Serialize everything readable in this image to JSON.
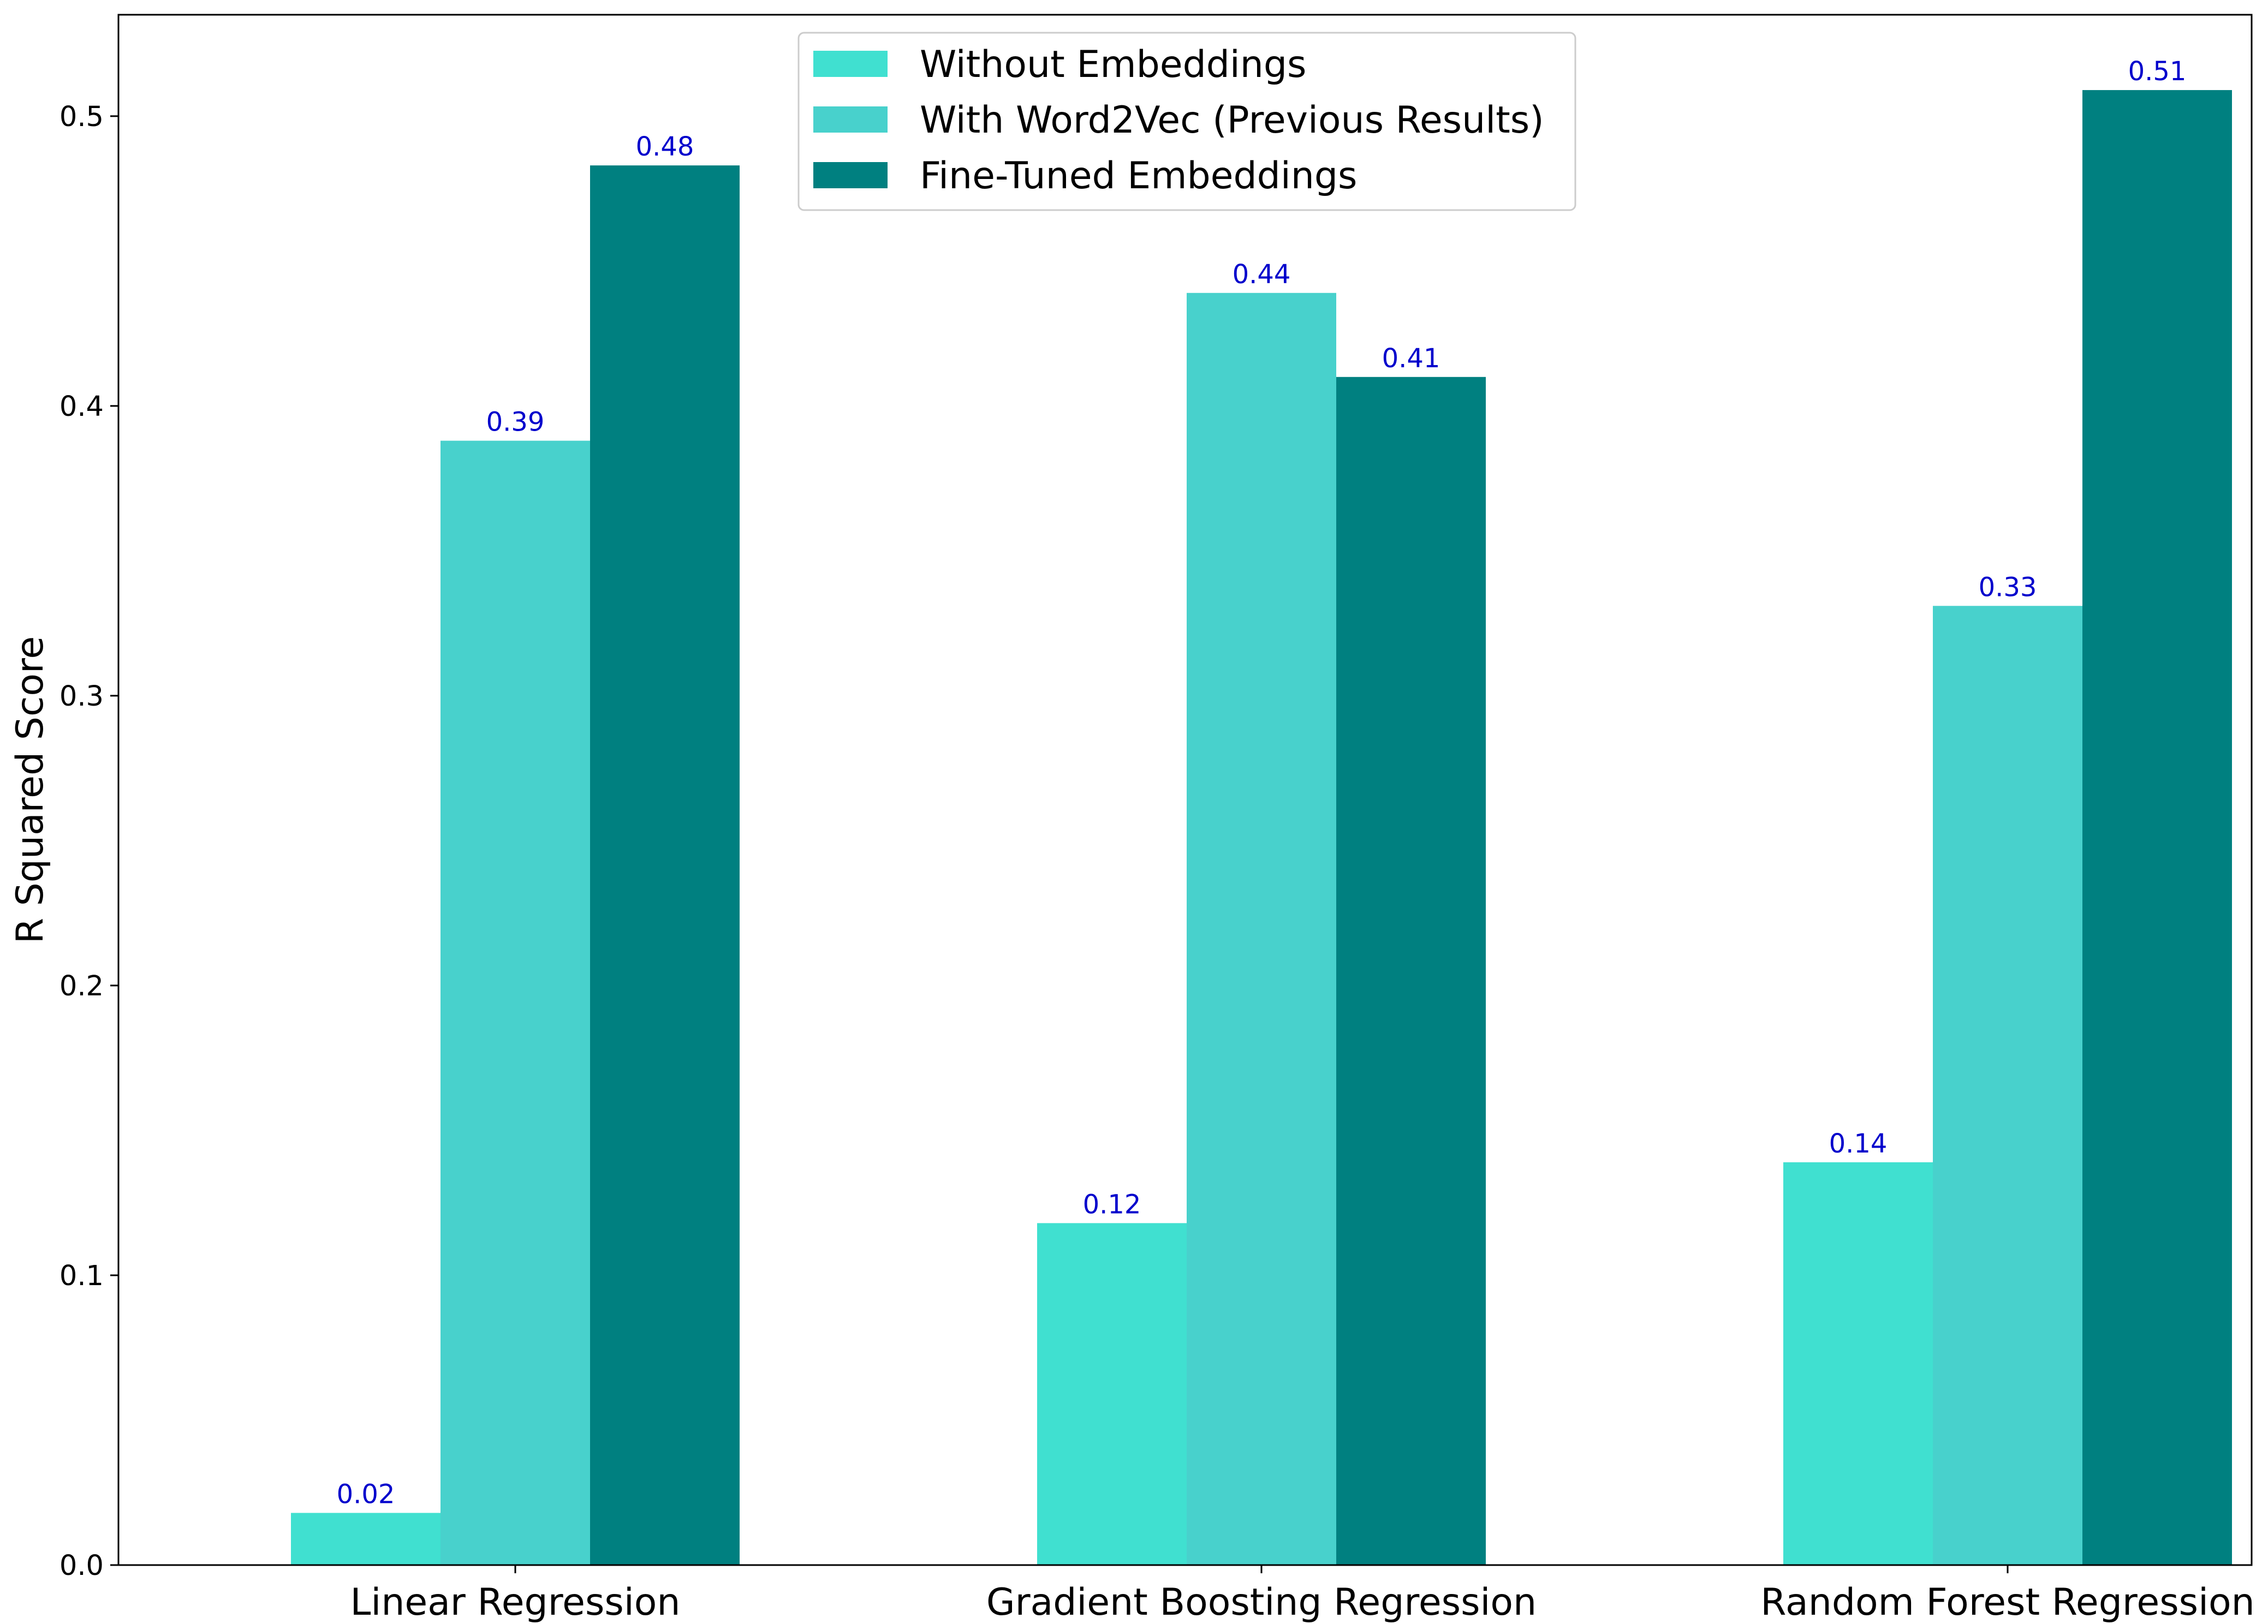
{
  "chart_data": {
    "type": "bar",
    "title": "",
    "xlabel": "",
    "ylabel": "R Squared Score",
    "ylim": [
      0,
      0.535
    ],
    "yticks": [
      0.0,
      0.1,
      0.2,
      0.3,
      0.4,
      0.5
    ],
    "ytick_labels": [
      "0.0",
      "0.1",
      "0.2",
      "0.3",
      "0.4",
      "0.5"
    ],
    "categories": [
      "Linear Regression",
      "Gradient Boosting Regression",
      "Random Forest Regression"
    ],
    "series": [
      {
        "name": "Without Embeddings",
        "color": "#40e0d0",
        "values": [
          0.018,
          0.118,
          0.139
        ],
        "labels": [
          "0.02",
          "0.12",
          "0.14"
        ]
      },
      {
        "name": "With Word2Vec (Previous Results)",
        "color": "#48d1cc",
        "values": [
          0.388,
          0.439,
          0.331
        ],
        "labels": [
          "0.39",
          "0.44",
          "0.33"
        ]
      },
      {
        "name": "Fine-Tuned Embeddings",
        "color": "#008080",
        "values": [
          0.483,
          0.41,
          0.509
        ],
        "labels": [
          "0.48",
          "0.41",
          "0.51"
        ]
      }
    ],
    "value_label_color": "#0000cc",
    "legend_position": "upper-center",
    "grid": false
  }
}
